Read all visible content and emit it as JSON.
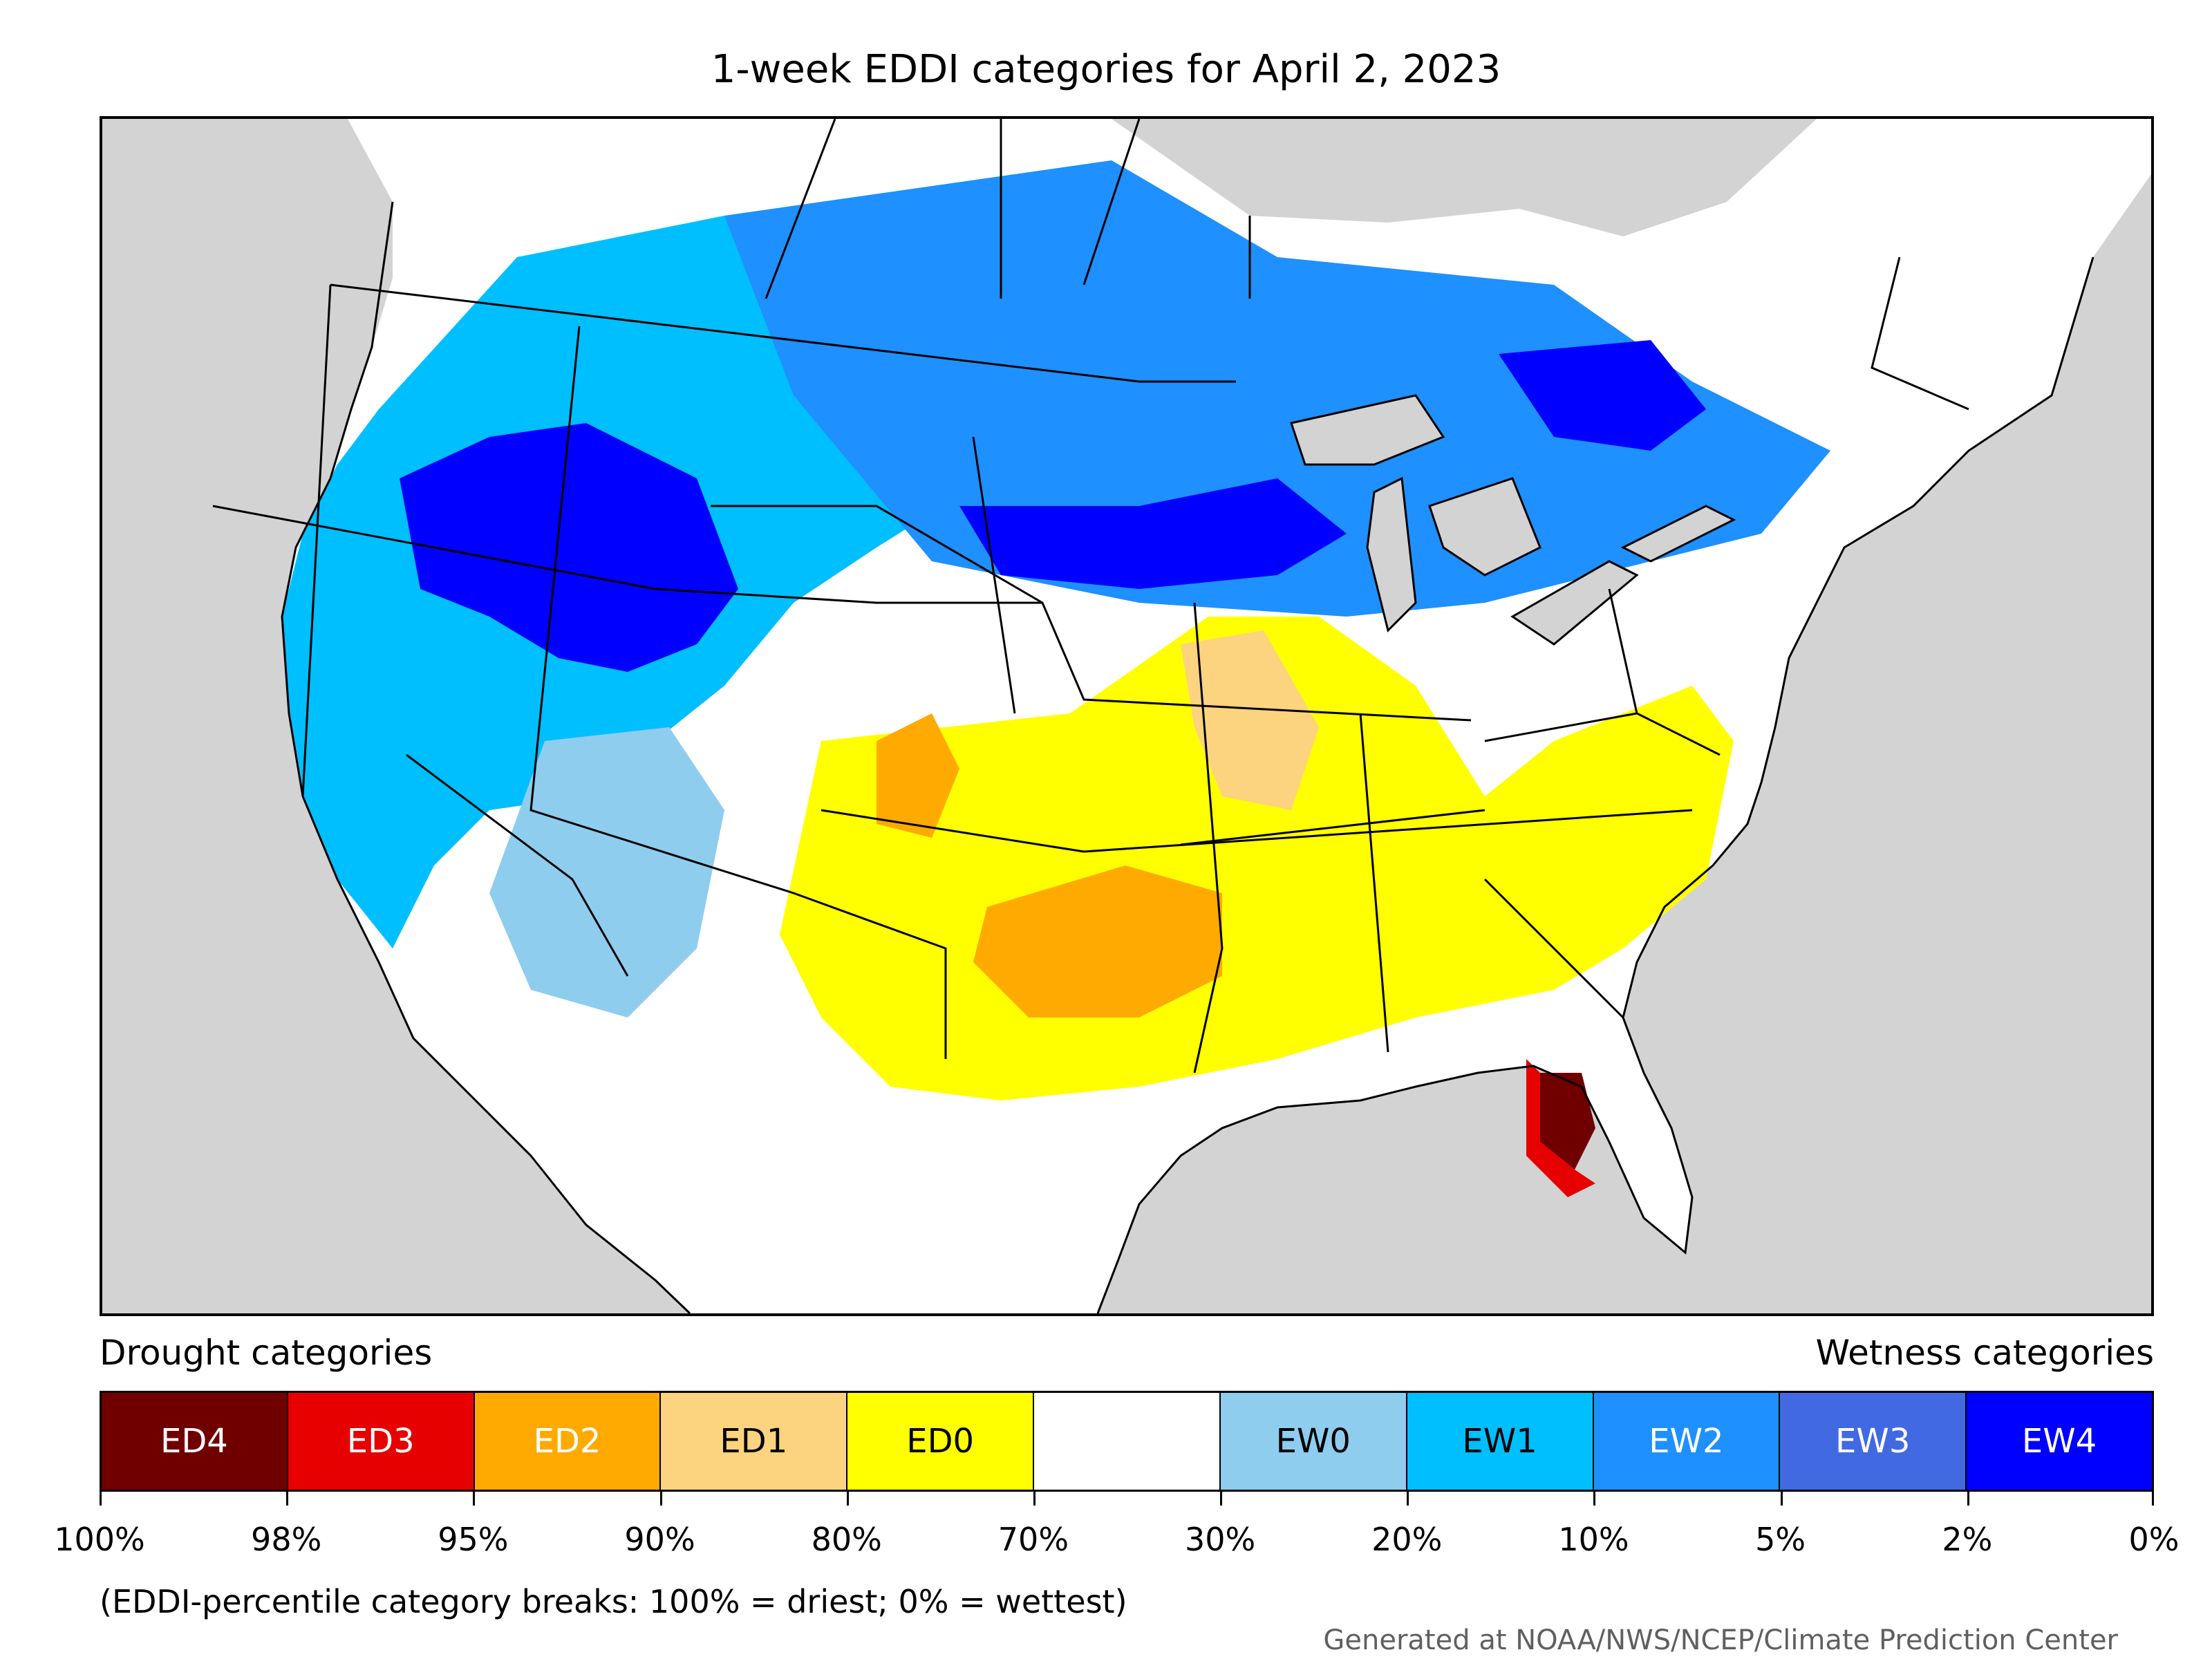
{
  "title": "1-week EDDI categories for April 2, 2023",
  "legend": {
    "drought_label": "Drought categories",
    "wetness_label": "Wetness categories",
    "categories": [
      {
        "label": "ED4",
        "color": "#700000",
        "text_color": "#ffffff"
      },
      {
        "label": "ED3",
        "color": "#e60000",
        "text_color": "#ffffff"
      },
      {
        "label": "ED2",
        "color": "#ffaa00",
        "text_color": "#ffffff"
      },
      {
        "label": "ED1",
        "color": "#fcd37f",
        "text_color": "#000000"
      },
      {
        "label": "ED0",
        "color": "#ffff00",
        "text_color": "#000000"
      },
      {
        "label": "",
        "color": "#ffffff",
        "text_color": "#000000"
      },
      {
        "label": "EW0",
        "color": "#8fcdef",
        "text_color": "#000000"
      },
      {
        "label": "EW1",
        "color": "#00bfff",
        "text_color": "#000000"
      },
      {
        "label": "EW2",
        "color": "#1e90ff",
        "text_color": "#ffffff"
      },
      {
        "label": "EW3",
        "color": "#4169e1",
        "text_color": "#ffffff"
      },
      {
        "label": "EW4",
        "color": "#0000ff",
        "text_color": "#ffffff"
      }
    ],
    "breaks": [
      "100%",
      "98%",
      "95%",
      "90%",
      "80%",
      "70%",
      "30%",
      "20%",
      "10%",
      "5%",
      "2%",
      "0%"
    ]
  },
  "footnote": "(EDDI-percentile category breaks: 100% = driest; 0% = wettest)",
  "credit": "Generated at NOAA/NWS/NCEP/Climate Prediction Center",
  "map_colors": {
    "land": "#ffffff",
    "water": "#d3d3d3",
    "border": "#000000"
  }
}
